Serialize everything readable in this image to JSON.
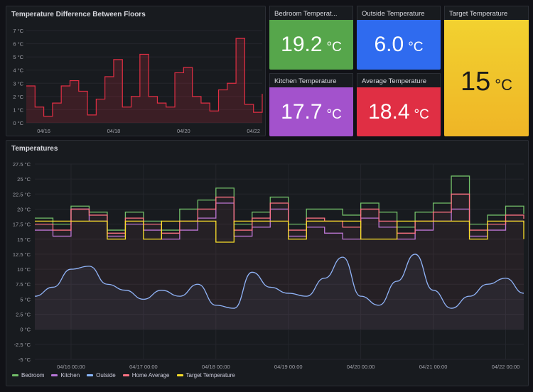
{
  "panels": {
    "diff": {
      "title": "Temperature Difference Between Floors",
      "y_ticks": [
        "7 °C",
        "6 °C",
        "5 °C",
        "4 °C",
        "3 °C",
        "2 °C",
        "1 °C",
        "0 °C"
      ],
      "x_ticks": [
        "04/16",
        "04/18",
        "04/20",
        "04/22"
      ]
    },
    "bedroom": {
      "title": "Bedroom Temperat...",
      "value": "19.2",
      "unit": "°C",
      "color": "#56a64b"
    },
    "outside": {
      "title": "Outside Temperature",
      "value": "6.0",
      "unit": "°C",
      "color": "#3274d9"
    },
    "target": {
      "title": "Target Temperature",
      "value": "15",
      "unit": "°C",
      "color": "#f2cc0c"
    },
    "kitchen": {
      "title": "Kitchen Temperature",
      "value": "17.7",
      "unit": "°C",
      "color": "#a352cc"
    },
    "average": {
      "title": "Average Temperature",
      "value": "18.4",
      "unit": "°C",
      "color": "#e02f44"
    },
    "temps": {
      "title": "Temperatures",
      "y_ticks": [
        "27.5 °C",
        "25 °C",
        "22.5 °C",
        "20 °C",
        "17.5 °C",
        "15 °C",
        "12.5 °C",
        "10 °C",
        "7.5 °C",
        "5 °C",
        "2.5 °C",
        "0 °C",
        "-2.5 °C",
        "-5 °C"
      ],
      "x_ticks": [
        "04/16 00:00",
        "04/17 00:00",
        "04/18 00:00",
        "04/19 00:00",
        "04/20 00:00",
        "04/21 00:00",
        "04/22 00:00"
      ]
    }
  },
  "chart_data": [
    {
      "type": "line",
      "title": "Temperature Difference Between Floors",
      "ylim": [
        0,
        7
      ],
      "x": [
        "04/15 12:00",
        "04/15 18:00",
        "04/16 00:00",
        "04/16 06:00",
        "04/16 12:00",
        "04/16 18:00",
        "04/17 00:00",
        "04/17 06:00",
        "04/17 12:00",
        "04/17 18:00",
        "04/18 00:00",
        "04/18 06:00",
        "04/18 12:00",
        "04/18 18:00",
        "04/19 00:00",
        "04/19 06:00",
        "04/19 12:00",
        "04/19 18:00",
        "04/20 00:00",
        "04/20 06:00",
        "04/20 12:00",
        "04/20 18:00",
        "04/21 00:00",
        "04/21 06:00",
        "04/21 12:00",
        "04/21 18:00",
        "04/22 00:00",
        "04/22 06:00"
      ],
      "series": [
        {
          "values": [
            2.8,
            1.2,
            0.5,
            1.5,
            2.8,
            3.2,
            2.4,
            0.6,
            1.8,
            3.5,
            4.8,
            1.2,
            2.0,
            5.2,
            2.0,
            1.5,
            1.2,
            3.8,
            4.2,
            2.0,
            1.5,
            0.9,
            2.5,
            3.0,
            6.4,
            1.4,
            0.8,
            2.2
          ],
          "color": "#e02f44"
        }
      ]
    },
    {
      "type": "line",
      "title": "Temperatures",
      "ylim": [
        -5,
        27.5
      ],
      "x": [
        "04/15 12:00",
        "04/15 18:00",
        "04/16 00:00",
        "04/16 06:00",
        "04/16 12:00",
        "04/16 18:00",
        "04/17 00:00",
        "04/17 06:00",
        "04/17 12:00",
        "04/17 18:00",
        "04/18 00:00",
        "04/18 06:00",
        "04/18 12:00",
        "04/18 18:00",
        "04/19 00:00",
        "04/19 06:00",
        "04/19 12:00",
        "04/19 18:00",
        "04/20 00:00",
        "04/20 06:00",
        "04/20 12:00",
        "04/20 18:00",
        "04/21 00:00",
        "04/21 06:00",
        "04/21 12:00",
        "04/21 18:00",
        "04/22 00:00",
        "04/22 06:00"
      ],
      "series": [
        {
          "name": "Bedroom",
          "color": "#73bf69",
          "values": [
            18.5,
            17.5,
            20.5,
            19.5,
            16.5,
            19.5,
            18.0,
            16.5,
            20.0,
            21.5,
            23.5,
            17.5,
            19.5,
            22.0,
            17.5,
            20.0,
            20.0,
            19.0,
            21.0,
            19.5,
            17.0,
            19.5,
            21.0,
            25.5,
            17.5,
            19.0,
            20.5,
            19.2
          ]
        },
        {
          "name": "Kitchen",
          "color": "#b877d9",
          "values": [
            16.5,
            15.5,
            20.0,
            18.0,
            15.5,
            17.5,
            16.5,
            15.0,
            16.5,
            18.5,
            21.0,
            15.5,
            17.0,
            20.0,
            15.5,
            17.0,
            16.0,
            15.0,
            18.5,
            17.0,
            15.0,
            16.5,
            18.0,
            20.0,
            15.5,
            16.5,
            18.0,
            17.7
          ]
        },
        {
          "name": "Outside",
          "color": "#8ab8ff",
          "values": [
            5.5,
            7.0,
            10.0,
            10.5,
            7.5,
            6.5,
            5.0,
            6.5,
            5.5,
            7.5,
            4.0,
            3.5,
            9.5,
            7.0,
            6.0,
            5.5,
            8.5,
            12.0,
            5.5,
            4.0,
            8.0,
            12.5,
            6.5,
            3.5,
            5.5,
            7.5,
            8.5,
            6.0
          ]
        },
        {
          "name": "Home Average",
          "color": "#ff7383",
          "values": [
            17.5,
            16.5,
            20.0,
            19.0,
            16.0,
            18.5,
            17.5,
            16.0,
            18.0,
            20.0,
            22.0,
            16.5,
            18.5,
            21.0,
            16.5,
            18.5,
            18.0,
            17.0,
            20.0,
            18.0,
            16.0,
            18.0,
            19.5,
            22.5,
            16.5,
            17.5,
            19.0,
            18.4
          ]
        },
        {
          "name": "Target Temperature",
          "color": "#fade2a",
          "values": [
            18.0,
            18.0,
            18.0,
            18.0,
            15.0,
            18.0,
            15.0,
            18.0,
            18.0,
            18.0,
            14.5,
            18.0,
            18.0,
            18.0,
            15.0,
            18.0,
            18.0,
            18.0,
            15.0,
            15.0,
            18.0,
            18.0,
            18.0,
            18.0,
            15.0,
            18.0,
            18.0,
            15.0
          ]
        }
      ]
    }
  ]
}
